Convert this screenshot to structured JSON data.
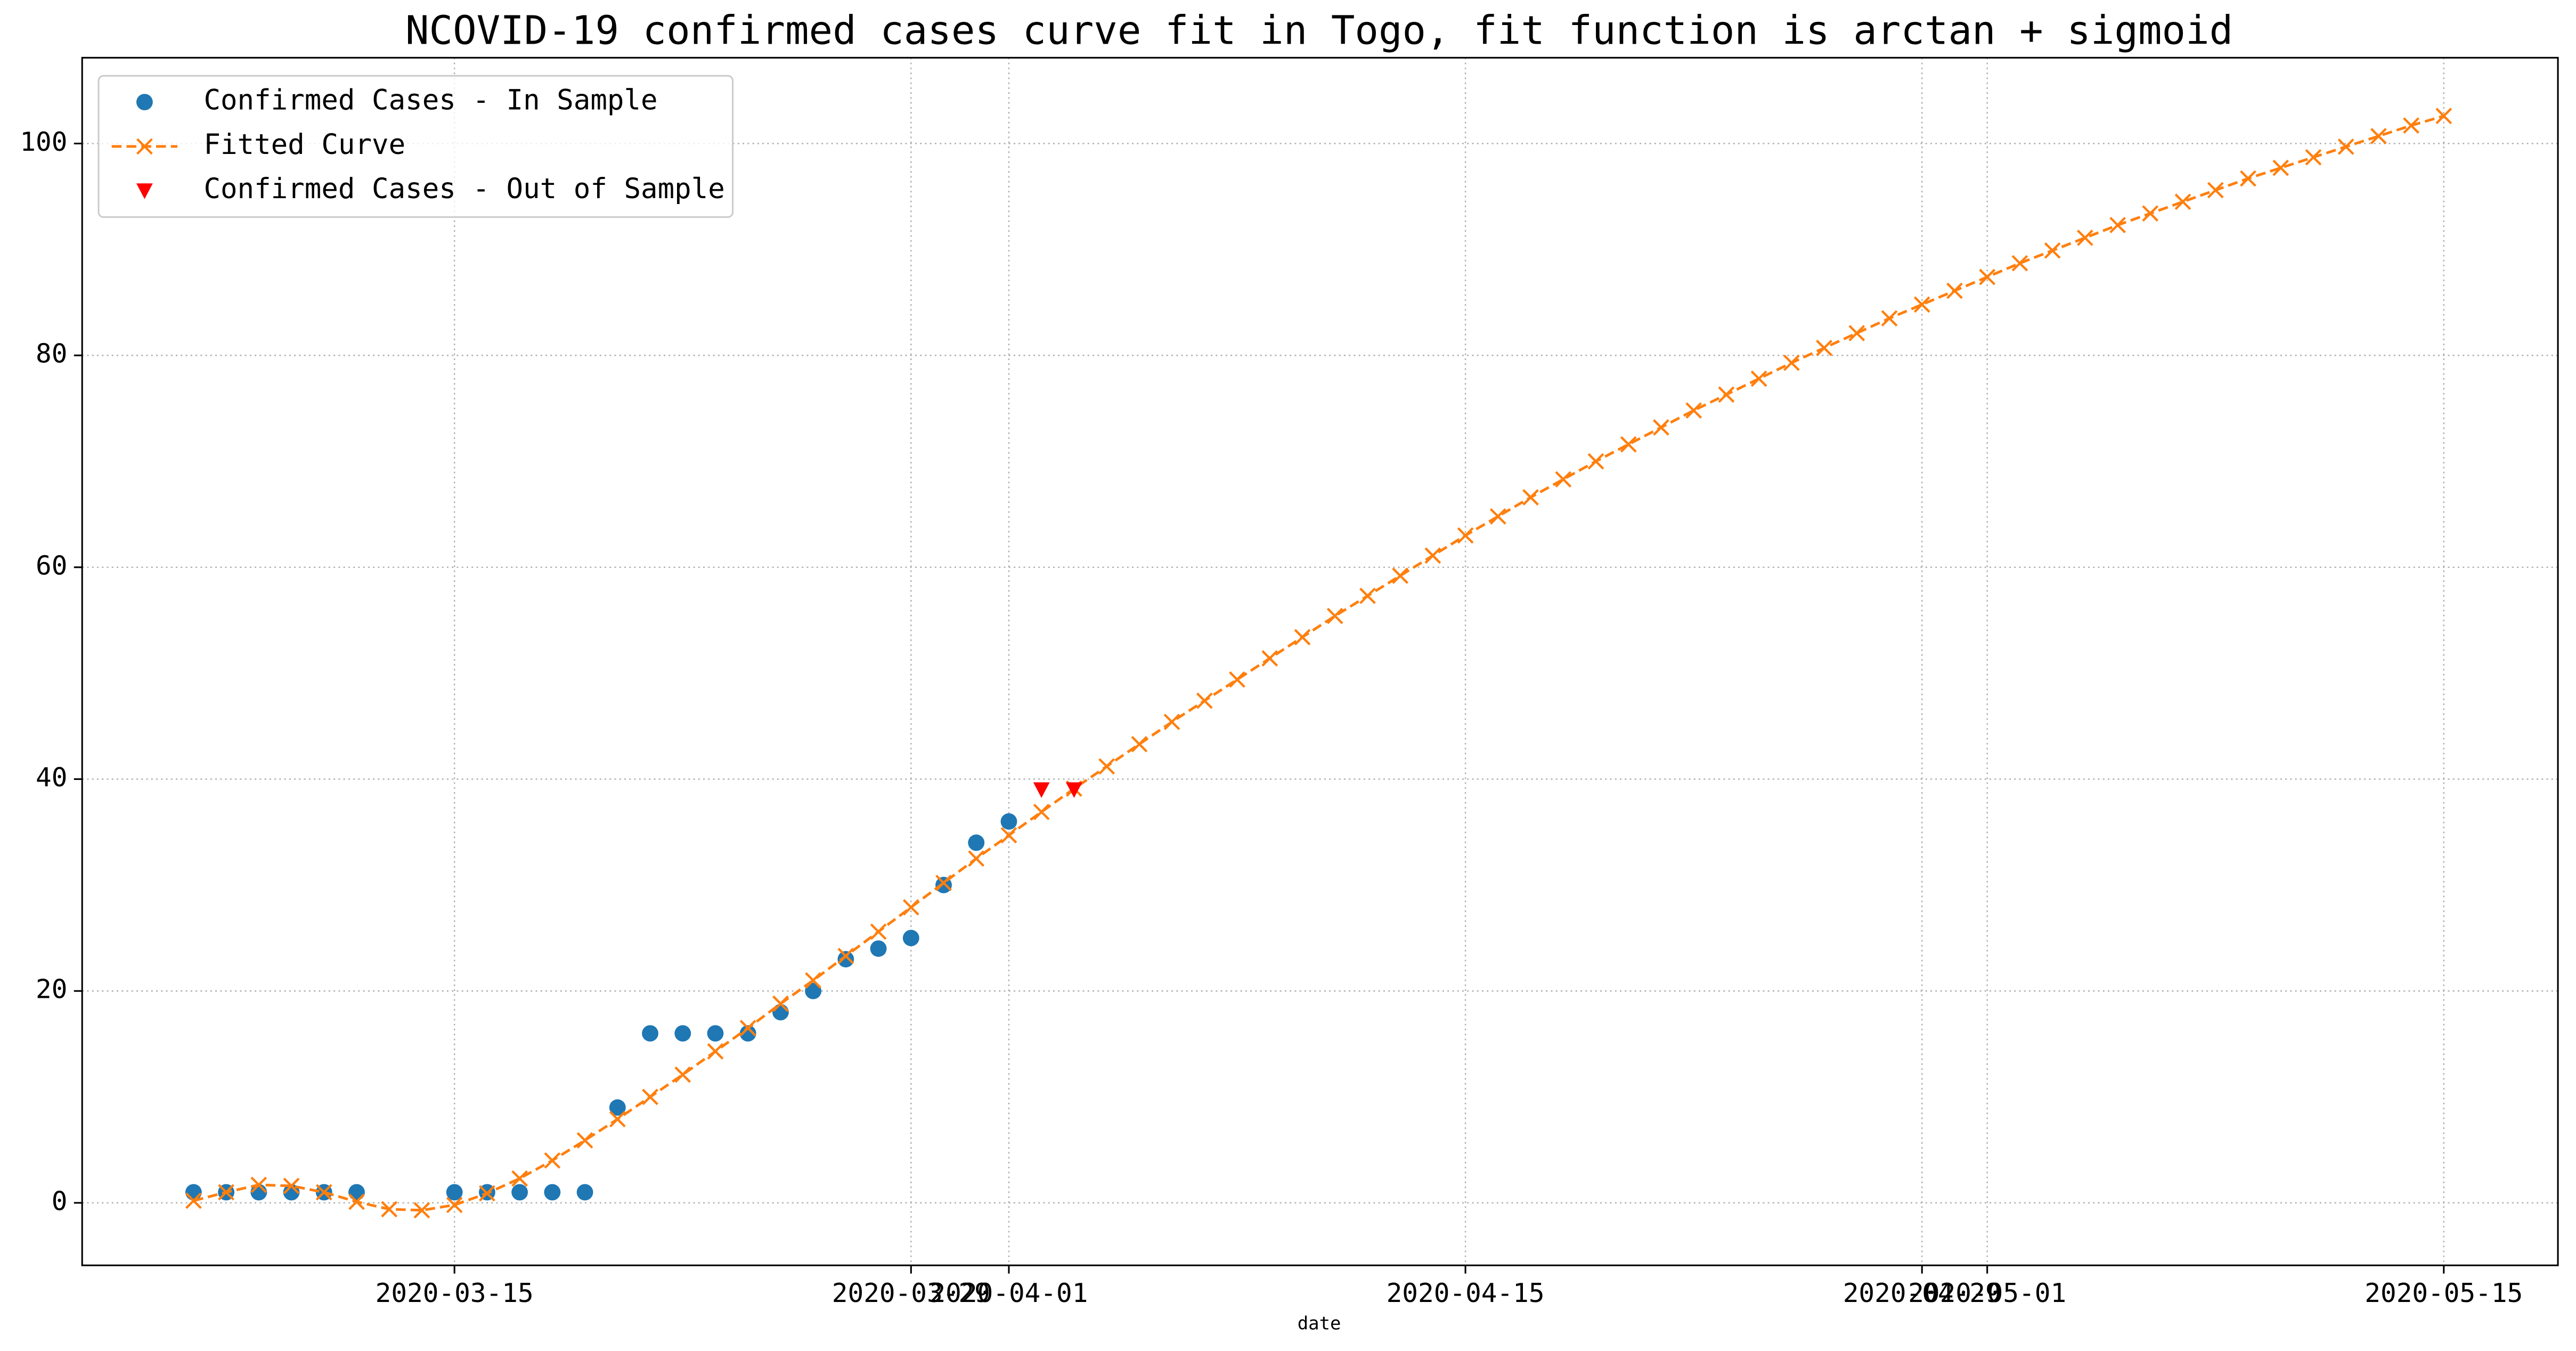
{
  "chart_data": {
    "type": "line",
    "title": "NCOVID-19 confirmed cases curve fit in Togo, fit function is arctan + sigmoid",
    "xlabel": "date",
    "xlim": [
      "2020-03-03T14:00",
      "2020-05-18T12:00"
    ],
    "xticks": [
      "2020-03-15",
      "2020-03-29",
      "2020-04-01",
      "2020-04-15",
      "2020-04-29",
      "2020-05-01",
      "2020-05-15"
    ],
    "ylim": [
      -5.9,
      108.1
    ],
    "yticks": [
      0,
      20,
      40,
      60,
      80,
      100
    ],
    "grid": true,
    "legend": "upper left",
    "series": [
      {
        "name": "Confirmed Cases - In Sample",
        "color": "#1f77b4",
        "marker": "circle",
        "linestyle": "none",
        "x": [
          "2020-03-07",
          "2020-03-08",
          "2020-03-09",
          "2020-03-10",
          "2020-03-11",
          "2020-03-12",
          "2020-03-15",
          "2020-03-16",
          "2020-03-17",
          "2020-03-18",
          "2020-03-19",
          "2020-03-20",
          "2020-03-21",
          "2020-03-22",
          "2020-03-23",
          "2020-03-24",
          "2020-03-25",
          "2020-03-26",
          "2020-03-27",
          "2020-03-28",
          "2020-03-29",
          "2020-03-30",
          "2020-03-31",
          "2020-04-01"
        ],
        "values": [
          1,
          1,
          1,
          1,
          1,
          1,
          1,
          1,
          1,
          1,
          1,
          9,
          16,
          16,
          16,
          16,
          18,
          20,
          23,
          24,
          25,
          30,
          34,
          36
        ]
      },
      {
        "name": "Fitted Curve",
        "color": "#ff7f0e",
        "marker": "x",
        "linestyle": "dashed",
        "x": [
          "2020-03-07",
          "2020-03-08",
          "2020-03-09",
          "2020-03-10",
          "2020-03-11",
          "2020-03-12",
          "2020-03-13",
          "2020-03-14",
          "2020-03-15",
          "2020-03-16",
          "2020-03-17",
          "2020-03-18",
          "2020-03-19",
          "2020-03-20",
          "2020-03-21",
          "2020-03-22",
          "2020-03-23",
          "2020-03-24",
          "2020-03-25",
          "2020-03-26",
          "2020-03-27",
          "2020-03-28",
          "2020-03-29",
          "2020-03-30",
          "2020-03-31",
          "2020-04-01",
          "2020-04-02",
          "2020-04-03",
          "2020-04-04",
          "2020-04-05",
          "2020-04-06",
          "2020-04-07",
          "2020-04-08",
          "2020-04-09",
          "2020-04-10",
          "2020-04-11",
          "2020-04-12",
          "2020-04-13",
          "2020-04-14",
          "2020-04-15",
          "2020-04-16",
          "2020-04-17",
          "2020-04-18",
          "2020-04-19",
          "2020-04-20",
          "2020-04-21",
          "2020-04-22",
          "2020-04-23",
          "2020-04-24",
          "2020-04-25",
          "2020-04-26",
          "2020-04-27",
          "2020-04-28",
          "2020-04-29",
          "2020-04-30",
          "2020-05-01",
          "2020-05-02",
          "2020-05-03",
          "2020-05-04",
          "2020-05-05",
          "2020-05-06",
          "2020-05-07",
          "2020-05-08",
          "2020-05-09",
          "2020-05-10",
          "2020-05-11",
          "2020-05-12",
          "2020-05-13",
          "2020-05-14",
          "2020-05-15"
        ],
        "values": [
          0.2,
          1.0,
          1.7,
          1.6,
          1.0,
          0.1,
          -0.6,
          -0.7,
          -0.2,
          0.9,
          2.3,
          4.0,
          5.9,
          7.9,
          10.0,
          12.1,
          14.3,
          16.5,
          18.8,
          21.0,
          23.3,
          25.6,
          27.9,
          30.2,
          32.5,
          34.7,
          36.9,
          39.1,
          41.2,
          43.3,
          45.4,
          47.4,
          49.4,
          51.4,
          53.4,
          55.4,
          57.3,
          59.2,
          61.1,
          63.0,
          64.8,
          66.6,
          68.3,
          70.0,
          71.6,
          73.2,
          74.8,
          76.3,
          77.8,
          79.3,
          80.7,
          82.1,
          83.5,
          84.8,
          86.1,
          87.4,
          88.7,
          89.9,
          91.1,
          92.3,
          93.4,
          94.5,
          95.6,
          96.7,
          97.7,
          98.7,
          99.7,
          100.7,
          101.7,
          102.6
        ]
      },
      {
        "name": "Confirmed Cases - Out of Sample",
        "color": "#ff0000",
        "marker": "triangle-down",
        "linestyle": "none",
        "x": [
          "2020-04-02",
          "2020-04-03"
        ],
        "values": [
          39,
          39
        ]
      }
    ]
  }
}
